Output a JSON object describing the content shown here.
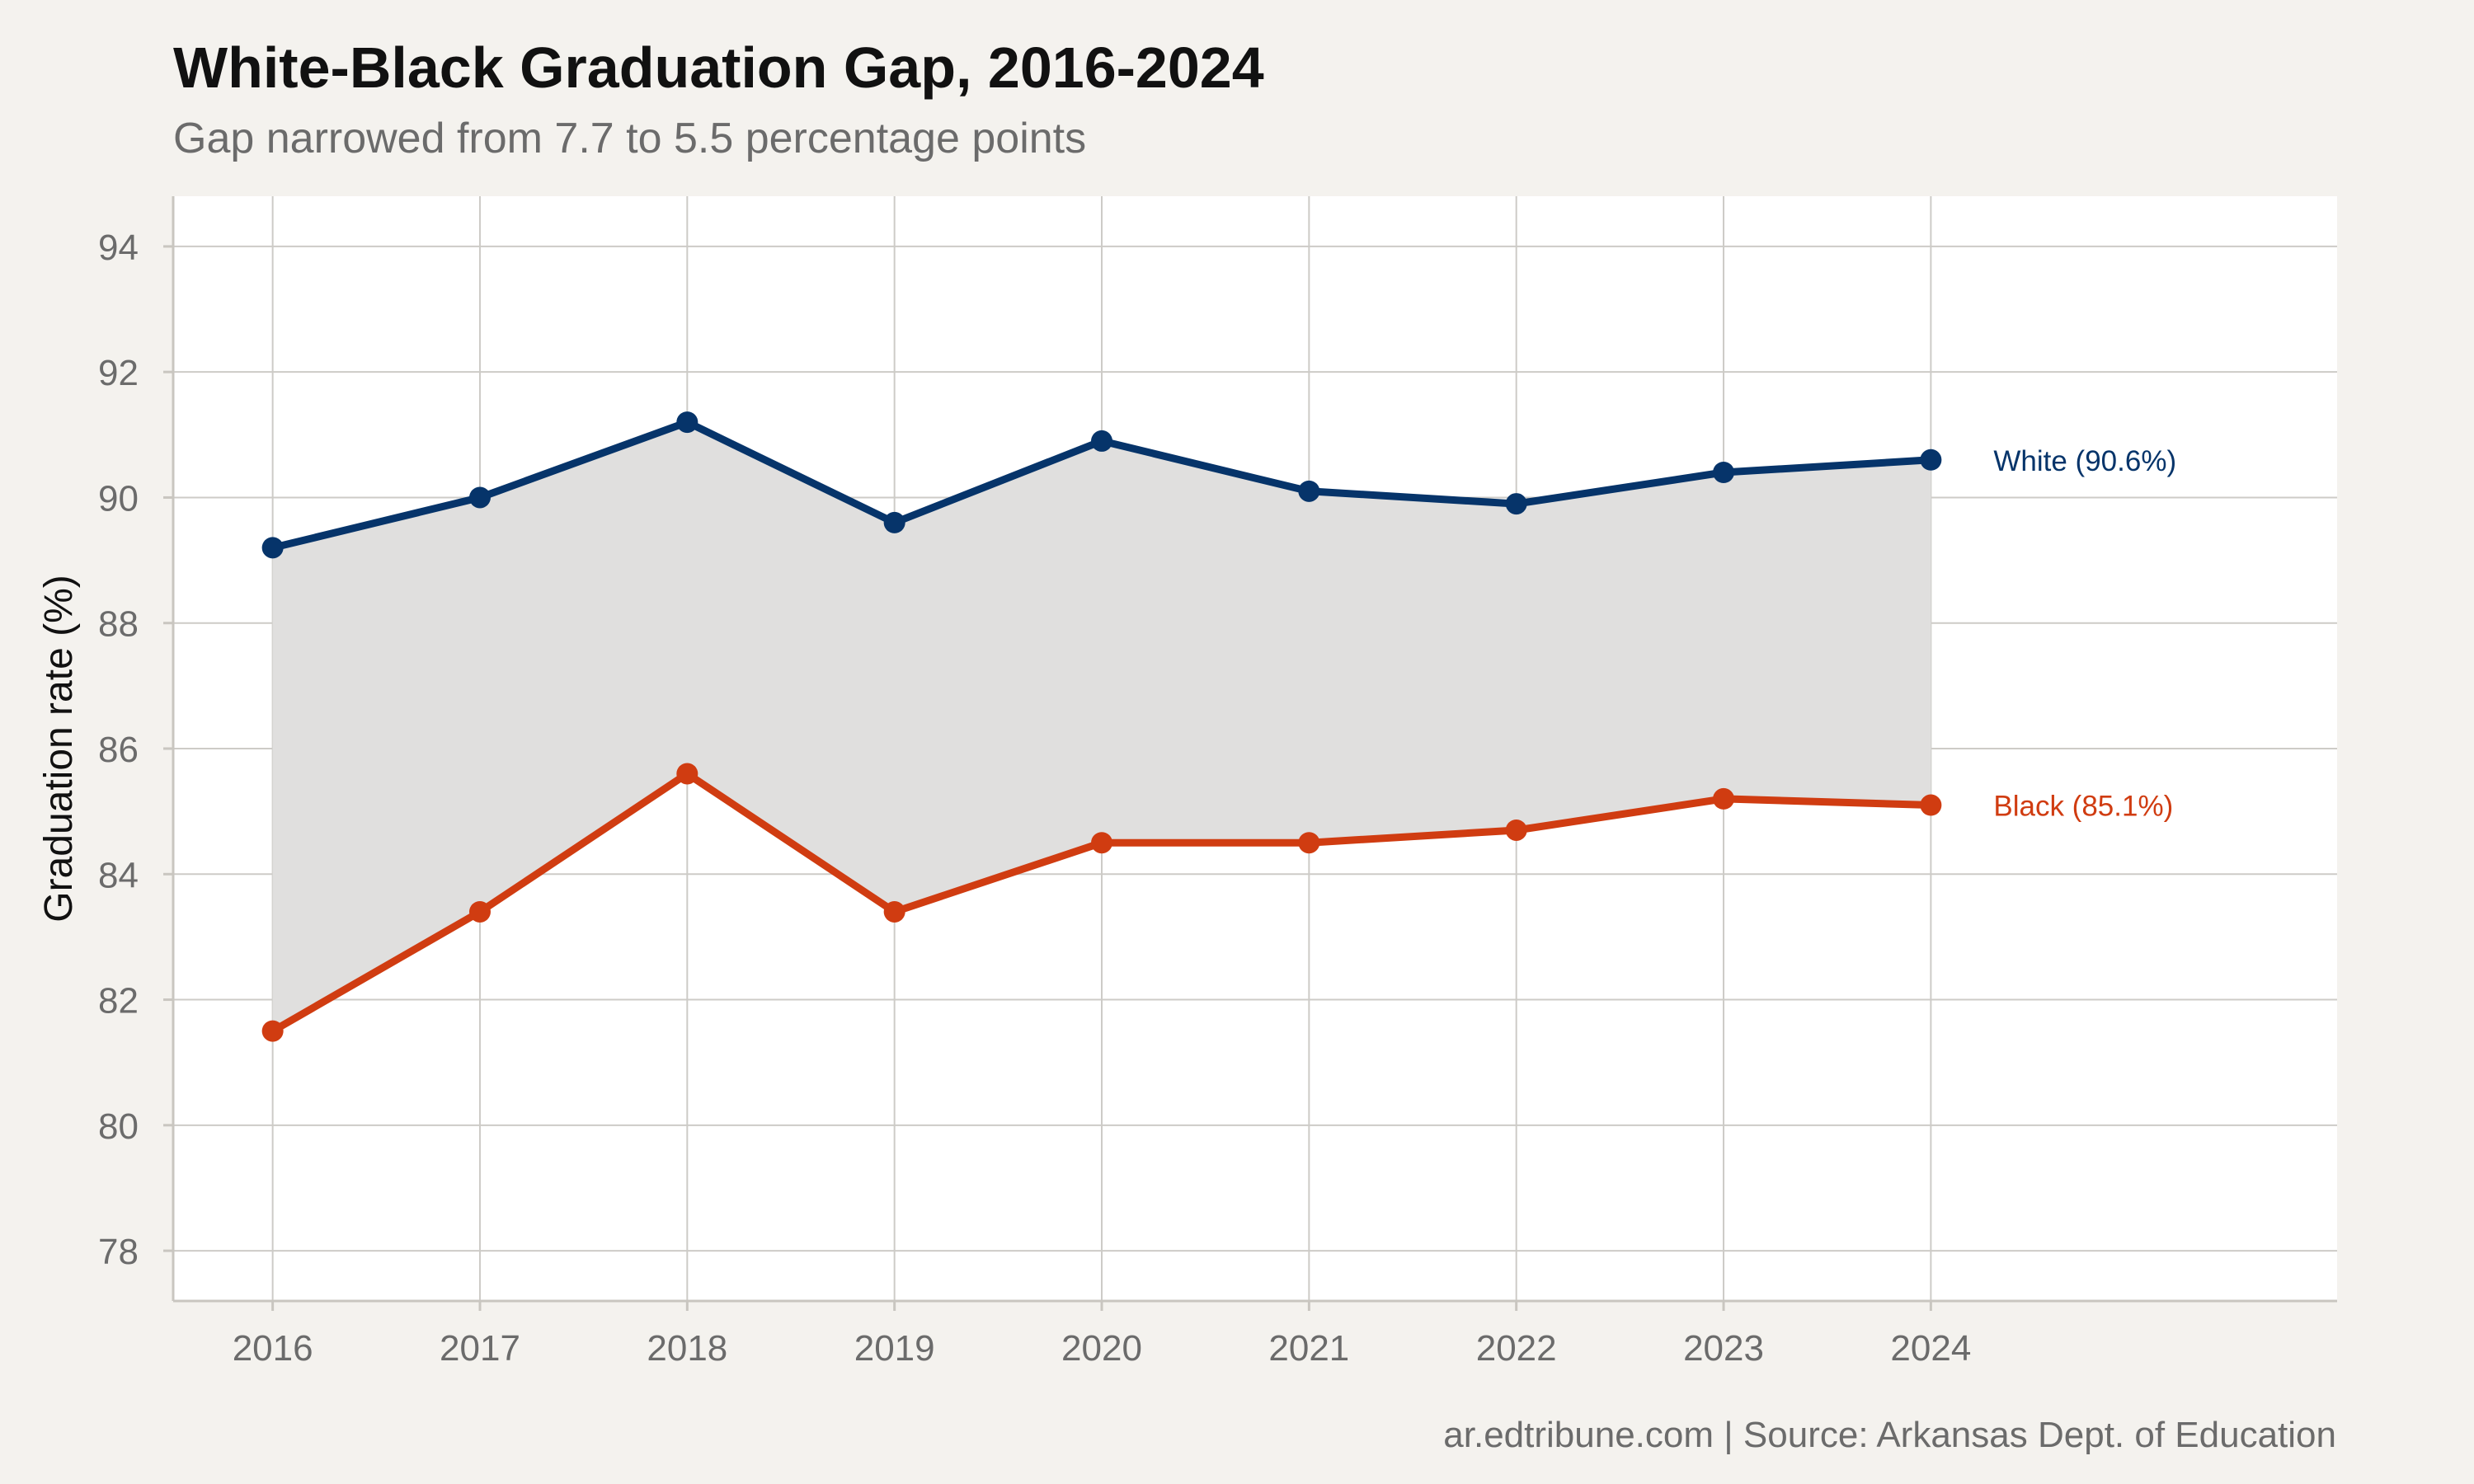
{
  "chart_data": {
    "type": "line",
    "title": "White-Black Graduation Gap, 2016-2024",
    "subtitle": "Gap narrowed from 7.7 to 5.5 percentage points",
    "caption": "ar.edtribune.com | Source: Arkansas Dept. of Education",
    "xlabel": "",
    "ylabel": "Graduation rate (%)",
    "x": [
      2016,
      2017,
      2018,
      2019,
      2020,
      2021,
      2022,
      2023,
      2024
    ],
    "x_tick_labels": [
      "2016",
      "2017",
      "2018",
      "2019",
      "2020",
      "2021",
      "2022",
      "2023",
      "2024"
    ],
    "y_ticks": [
      78,
      80,
      82,
      84,
      86,
      88,
      90,
      92,
      94
    ],
    "y_tick_labels": [
      "78",
      "80",
      "82",
      "84",
      "86",
      "88",
      "90",
      "92",
      "94"
    ],
    "ylim": [
      77.2,
      94.8
    ],
    "xlim": [
      2015.52,
      2025.96
    ],
    "grid": true,
    "shaded_gap": true,
    "gap_fill_color": "#e0dfde",
    "series": [
      {
        "name": "White",
        "label": "White (90.6%)",
        "color": "#06346a",
        "values": [
          89.2,
          90.0,
          91.2,
          89.6,
          90.9,
          90.1,
          89.9,
          90.4,
          90.6
        ]
      },
      {
        "name": "Black",
        "label": "Black (85.1%)",
        "color": "#d03c11",
        "values": [
          81.5,
          83.4,
          85.6,
          83.4,
          84.5,
          84.5,
          84.7,
          85.2,
          85.1
        ]
      }
    ]
  }
}
